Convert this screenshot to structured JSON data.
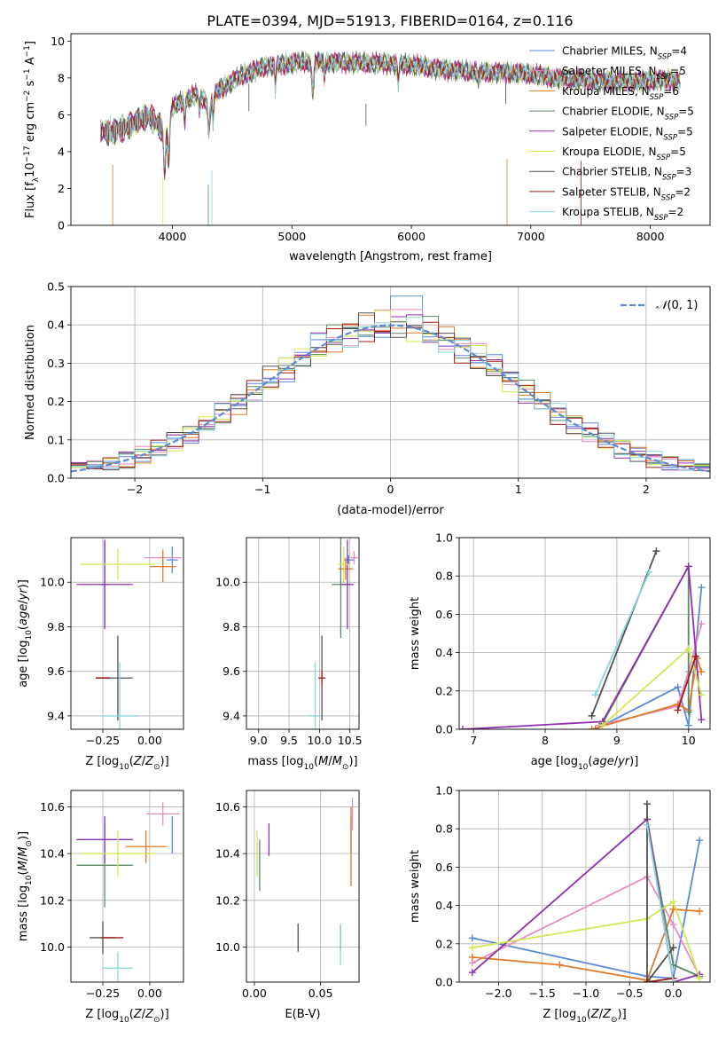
{
  "figure": {
    "title": "PLATE=0394, MJD=51913, FIBERID=0164, z=0.116"
  },
  "colors": {
    "Chabrier MILES": "#5b8bd8",
    "Salpeter MILES": "#e88cc0",
    "Kroupa MILES": "#e07a28",
    "Chabrier ELODIE": "#5a8a62",
    "Salpeter ELODIE": "#9030b0",
    "Kroupa ELODIE": "#d0e850",
    "Chabrier STELIB": "#505050",
    "Salpeter STELIB": "#a01c1c",
    "Kroupa STELIB": "#88d8dc",
    "gaussian": "#5b8bd8"
  },
  "chart_data": [
    {
      "id": "spectrum",
      "type": "line",
      "title": "PLATE=0394, MJD=51913, FIBERID=0164, z=0.116",
      "xlabel": "wavelength [Angstrom, rest frame]",
      "ylabel": "Flux [f_λ 10^-17 erg cm^-2 s^-1 A^-1]",
      "xlim": [
        3150,
        8500
      ],
      "ylim": [
        0,
        10.4
      ],
      "xticks": [
        4000,
        5000,
        6000,
        7000,
        8000
      ],
      "yticks": [
        0,
        2,
        4,
        6,
        8,
        10
      ],
      "grid": false,
      "legend_position": "right",
      "continuum": {
        "x": [
          3400,
          3500,
          3600,
          3700,
          3800,
          3900,
          3950,
          4000,
          4100,
          4200,
          4300,
          4400,
          4500,
          4600,
          4700,
          4800,
          4900,
          5000,
          5200,
          5400,
          5600,
          5800,
          6000,
          6200,
          6400,
          6600,
          6800,
          7000,
          7200,
          7400,
          7600,
          7800,
          8000,
          8200,
          8250
        ],
        "y": [
          5.2,
          5.0,
          5.3,
          5.6,
          6.0,
          5.3,
          4.9,
          6.4,
          6.8,
          7.1,
          6.7,
          7.4,
          7.8,
          8.2,
          8.4,
          8.7,
          8.7,
          8.8,
          8.9,
          8.85,
          8.8,
          8.8,
          8.7,
          8.5,
          8.4,
          8.3,
          8.3,
          8.2,
          8.0,
          7.9,
          7.8,
          7.8,
          7.85,
          7.9,
          7.8
        ]
      },
      "series": [
        {
          "name": "Chabrier MILES, N_SSP=4",
          "label": "Chabrier MILES, N",
          "sub": "SSP",
          "suffix": "=4"
        },
        {
          "name": "Salpeter MILES, N_SSP=5",
          "label": "Salpeter MILES, N",
          "sub": "SSP",
          "suffix": "=5"
        },
        {
          "name": "Kroupa MILES, N_SSP=6",
          "label": "Kroupa MILES, N",
          "sub": "SSP",
          "suffix": "=6"
        },
        {
          "name": "Chabrier ELODIE, N_SSP=5",
          "label": "Chabrier ELODIE, N",
          "sub": "SSP",
          "suffix": "=5"
        },
        {
          "name": "Salpeter ELODIE, N_SSP=5",
          "label": "Salpeter ELODIE, N",
          "sub": "SSP",
          "suffix": "=5"
        },
        {
          "name": "Kroupa ELODIE, N_SSP=5",
          "label": "Kroupa ELODIE, N",
          "sub": "SSP",
          "suffix": "=5"
        },
        {
          "name": "Chabrier STELIB, N_SSP=3",
          "label": "Chabrier STELIB, N",
          "sub": "SSP",
          "suffix": "=3"
        },
        {
          "name": "Salpeter STELIB, N_SSP=2",
          "label": "Salpeter STELIB, N",
          "sub": "SSP",
          "suffix": "=2"
        },
        {
          "name": "Kroupa STELIB, N_SSP=2",
          "label": "Kroupa STELIB, N",
          "sub": "SSP",
          "suffix": "=2"
        }
      ]
    },
    {
      "id": "residuals",
      "type": "line",
      "xlabel": "(data-model)/error",
      "ylabel": "Normed distribution",
      "xlim": [
        -2.5,
        2.5
      ],
      "ylim": [
        0,
        0.5
      ],
      "xticks": [
        -2,
        -1,
        0,
        1,
        2
      ],
      "yticks": [
        0.0,
        0.1,
        0.2,
        0.3,
        0.4,
        0.5
      ],
      "grid": true,
      "legend_position": "top-right",
      "legend": "N(0,1)",
      "bin_width": 0.125
    },
    {
      "id": "z_age",
      "type": "scatter",
      "xlabel": "Z [log10(Z/Z⊙)]",
      "ylabel": "age [log10(age/yr)]",
      "xlim": [
        -0.42,
        0.18
      ],
      "ylim": [
        9.34,
        10.2
      ],
      "xticks": [
        -0.25,
        0.0
      ],
      "yticks": [
        9.4,
        9.6,
        9.8,
        10.0
      ],
      "grid": true,
      "points": [
        {
          "series": "Chabrier MILES",
          "x": 0.12,
          "xerr": 0.03,
          "y": 10.1,
          "yerr": 0.06
        },
        {
          "series": "Salpeter MILES",
          "x": 0.07,
          "xerr": 0.1,
          "y": 10.11,
          "yerr": 0.04
        },
        {
          "series": "Kroupa MILES",
          "x": 0.07,
          "xerr": 0.07,
          "y": 10.07,
          "yerr": 0.07
        },
        {
          "series": "Chabrier ELODIE",
          "x": -0.24,
          "xerr": 0.02,
          "y": 9.99,
          "yerr": 0.2
        },
        {
          "series": "Salpeter ELODIE",
          "x": -0.24,
          "xerr": 0.15,
          "y": 9.99,
          "yerr": 0.2
        },
        {
          "series": "Kroupa ELODIE",
          "x": -0.17,
          "xerr": 0.2,
          "y": 10.08,
          "yerr": 0.07
        },
        {
          "series": "Chabrier STELIB",
          "x": -0.17,
          "xerr": 0.08,
          "y": 9.57,
          "yerr": 0.19
        },
        {
          "series": "Salpeter STELIB",
          "x": -0.25,
          "xerr": 0.0,
          "y": 9.57,
          "yerr": 0.0
        },
        {
          "series": "Kroupa STELIB",
          "x": -0.16,
          "xerr": 0.1,
          "y": 9.4,
          "yerr": 0.24
        }
      ]
    },
    {
      "id": "mass_age",
      "type": "scatter",
      "xlabel": "mass [log10(M/M⊙)]",
      "ylabel": "",
      "xlim": [
        8.8,
        10.65
      ],
      "ylim": [
        9.34,
        10.2
      ],
      "xticks": [
        9.0,
        9.5,
        10.0,
        10.5
      ],
      "yticks": [
        9.4,
        9.6,
        9.8,
        10.0
      ],
      "grid": true,
      "points": [
        {
          "series": "Chabrier MILES",
          "x": 10.48,
          "xerr": 0.08,
          "y": 10.1,
          "yerr": 0.02
        },
        {
          "series": "Salpeter MILES",
          "x": 10.57,
          "xerr": 0.06,
          "y": 10.11,
          "yerr": 0.03
        },
        {
          "series": "Kroupa MILES",
          "x": 10.43,
          "xerr": 0.12,
          "y": 10.06,
          "yerr": 0.05
        },
        {
          "series": "Chabrier ELODIE",
          "x": 10.35,
          "xerr": 0.15,
          "y": 9.99,
          "yerr": 0.24
        },
        {
          "series": "Salpeter ELODIE",
          "x": 10.46,
          "xerr": 0.1,
          "y": 9.99,
          "yerr": 0.2
        },
        {
          "series": "Kroupa ELODIE",
          "x": 10.4,
          "xerr": 0.09,
          "y": 10.08,
          "yerr": 0.08
        },
        {
          "series": "Chabrier STELIB",
          "x": 10.04,
          "xerr": 0.06,
          "y": 9.57,
          "yerr": 0.19
        },
        {
          "series": "Salpeter STELIB",
          "x": 10.04,
          "xerr": 0.04,
          "y": 9.57,
          "yerr": 0.03
        },
        {
          "series": "Kroupa STELIB",
          "x": 9.93,
          "xerr": 0.1,
          "y": 9.4,
          "yerr": 0.24
        }
      ]
    },
    {
      "id": "weight_age",
      "type": "line",
      "xlabel": "age [log10(age/yr)]",
      "ylabel": "mass weight",
      "xlim": [
        6.8,
        10.3
      ],
      "ylim": [
        0,
        1
      ],
      "xticks": [
        7,
        8,
        9,
        10
      ],
      "yticks": [
        0.0,
        0.2,
        0.4,
        0.6,
        0.8,
        1.0
      ],
      "grid": true,
      "series": [
        {
          "name": "Chabrier MILES",
          "points": [
            [
              8.7,
              0.0
            ],
            [
              9.85,
              0.22
            ],
            [
              10.0,
              0.02
            ],
            [
              10.18,
              0.74
            ]
          ]
        },
        {
          "name": "Salpeter MILES",
          "points": [
            [
              8.75,
              0.02
            ],
            [
              9.85,
              0.12
            ],
            [
              10.0,
              0.3
            ],
            [
              10.18,
              0.55
            ]
          ]
        },
        {
          "name": "Kroupa MILES",
          "points": [
            [
              8.65,
              0.0
            ],
            [
              9.85,
              0.13
            ],
            [
              10.0,
              0.1
            ],
            [
              10.12,
              0.37
            ],
            [
              10.18,
              0.3
            ]
          ]
        },
        {
          "name": "Chabrier ELODIE",
          "points": [
            [
              8.8,
              0.03
            ],
            [
              10.0,
              0.85
            ],
            [
              10.0,
              0.09
            ]
          ]
        },
        {
          "name": "Salpeter ELODIE",
          "points": [
            [
              6.85,
              0.0
            ],
            [
              8.8,
              0.04
            ],
            [
              10.0,
              0.85
            ],
            [
              10.18,
              0.05
            ]
          ]
        },
        {
          "name": "Kroupa ELODIE",
          "points": [
            [
              8.8,
              0.02
            ],
            [
              10.0,
              0.42
            ],
            [
              10.18,
              0.18
            ]
          ]
        },
        {
          "name": "Chabrier STELIB",
          "points": [
            [
              8.65,
              0.07
            ],
            [
              9.55,
              0.93
            ]
          ]
        },
        {
          "name": "Salpeter STELIB",
          "points": [
            [
              9.85,
              0.1
            ],
            [
              10.1,
              0.38
            ]
          ]
        },
        {
          "name": "Kroupa STELIB",
          "points": [
            [
              8.7,
              0.18
            ],
            [
              9.45,
              0.82
            ]
          ]
        }
      ]
    },
    {
      "id": "z_mass",
      "type": "scatter",
      "xlabel": "Z [log10(Z/Z⊙)]",
      "ylabel": "mass [log10(M/M⊙)]",
      "xlim": [
        -0.42,
        0.18
      ],
      "ylim": [
        9.85,
        10.67
      ],
      "xticks": [
        -0.25,
        0.0
      ],
      "yticks": [
        10.0,
        10.2,
        10.4,
        10.6
      ],
      "grid": true,
      "points": [
        {
          "series": "Chabrier MILES",
          "x": 0.12,
          "xerr": 0.0,
          "y": 10.48,
          "yerr": 0.08
        },
        {
          "series": "Salpeter MILES",
          "x": 0.07,
          "xerr": 0.09,
          "y": 10.57,
          "yerr": 0.05
        },
        {
          "series": "Kroupa MILES",
          "x": -0.02,
          "xerr": 0.11,
          "y": 10.43,
          "yerr": 0.07
        },
        {
          "series": "Chabrier ELODIE",
          "x": -0.24,
          "xerr": 0.15,
          "y": 10.35,
          "yerr": 0.18
        },
        {
          "series": "Salpeter ELODIE",
          "x": -0.24,
          "xerr": 0.15,
          "y": 10.46,
          "yerr": 0.1
        },
        {
          "series": "Kroupa ELODIE",
          "x": -0.17,
          "xerr": 0.2,
          "y": 10.4,
          "yerr": 0.1
        },
        {
          "series": "Chabrier STELIB",
          "x": -0.25,
          "xerr": 0.07,
          "y": 10.04,
          "yerr": 0.07
        },
        {
          "series": "Salpeter STELIB",
          "x": -0.2,
          "xerr": 0.06,
          "y": 10.04,
          "yerr": 0.0
        },
        {
          "series": "Kroupa STELIB",
          "x": -0.17,
          "xerr": 0.08,
          "y": 9.91,
          "yerr": 0.07
        }
      ]
    },
    {
      "id": "ebv_mass",
      "type": "scatter",
      "xlabel": "E(B-V)",
      "ylabel": "",
      "xlim": [
        -0.006,
        0.079
      ],
      "ylim": [
        9.85,
        10.67
      ],
      "xticks": [
        0.0,
        0.05
      ],
      "yticks": [
        10.0,
        10.2,
        10.4,
        10.6
      ],
      "grid": true,
      "points": [
        {
          "series": "Chabrier MILES",
          "x": 0.073,
          "y": 10.48,
          "yerr": 0.08
        },
        {
          "series": "Salpeter MILES",
          "x": 0.074,
          "y": 10.57,
          "yerr": 0.07
        },
        {
          "series": "Kroupa MILES",
          "x": 0.073,
          "y": 10.43,
          "yerr": 0.17
        },
        {
          "series": "Chabrier ELODIE",
          "x": 0.004,
          "y": 10.35,
          "yerr": 0.11
        },
        {
          "series": "Salpeter ELODIE",
          "x": 0.011,
          "y": 10.46,
          "yerr": 0.07
        },
        {
          "series": "Kroupa ELODIE",
          "x": 0.002,
          "y": 10.4,
          "yerr": 0.1
        },
        {
          "series": "Chabrier STELIB",
          "x": 0.033,
          "y": 10.04,
          "yerr": 0.06
        },
        {
          "series": "Salpeter STELIB",
          "x": 0.065,
          "y": 10.04,
          "yerr": 0.05
        },
        {
          "series": "Kroupa STELIB",
          "x": 0.065,
          "y": 10.01,
          "yerr": 0.09
        }
      ]
    },
    {
      "id": "weight_z",
      "type": "line",
      "xlabel": "Z [log10(Z/Z⊙)]",
      "ylabel": "mass weight",
      "xlim": [
        -2.45,
        0.42
      ],
      "ylim": [
        0,
        1
      ],
      "xticks": [
        -2.0,
        -1.5,
        -1.0,
        -0.5,
        0.0
      ],
      "yticks": [
        0.0,
        0.2,
        0.4,
        0.6,
        0.8,
        1.0
      ],
      "grid": true,
      "series": [
        {
          "name": "Chabrier MILES",
          "points": [
            [
              -2.3,
              0.23
            ],
            [
              -0.3,
              0.03
            ],
            [
              0.0,
              0.02
            ],
            [
              0.3,
              0.74
            ]
          ]
        },
        {
          "name": "Salpeter MILES",
          "points": [
            [
              -2.3,
              0.1
            ],
            [
              -0.3,
              0.55
            ],
            [
              0.0,
              0.3
            ],
            [
              0.3,
              0.03
            ]
          ]
        },
        {
          "name": "Kroupa MILES",
          "points": [
            [
              -2.3,
              0.13
            ],
            [
              -1.3,
              0.09
            ],
            [
              -0.3,
              0.01
            ],
            [
              0.0,
              0.38
            ],
            [
              0.3,
              0.37
            ]
          ]
        },
        {
          "name": "Chabrier ELODIE",
          "points": [
            [
              -0.3,
              0.85
            ],
            [
              0.0,
              0.09
            ],
            [
              0.3,
              0.03
            ]
          ]
        },
        {
          "name": "Salpeter ELODIE",
          "points": [
            [
              -2.3,
              0.05
            ],
            [
              -0.3,
              0.85
            ],
            [
              0.0,
              0.0
            ],
            [
              0.3,
              0.04
            ]
          ]
        },
        {
          "name": "Kroupa ELODIE",
          "points": [
            [
              -2.3,
              0.18
            ],
            [
              -0.3,
              0.33
            ],
            [
              0.0,
              0.42
            ],
            [
              0.3,
              0.02
            ]
          ]
        },
        {
          "name": "Chabrier STELIB",
          "points": [
            [
              -0.3,
              0.93
            ],
            [
              -0.3,
              0.0
            ],
            [
              0.0,
              0.18
            ]
          ]
        },
        {
          "name": "Salpeter STELIB",
          "points": [
            [
              -0.3,
              0.0
            ],
            [
              0.0,
              0.02
            ]
          ]
        },
        {
          "name": "Kroupa STELIB",
          "points": [
            [
              -0.3,
              0.82
            ],
            [
              0.0,
              0.0
            ]
          ]
        }
      ]
    }
  ]
}
